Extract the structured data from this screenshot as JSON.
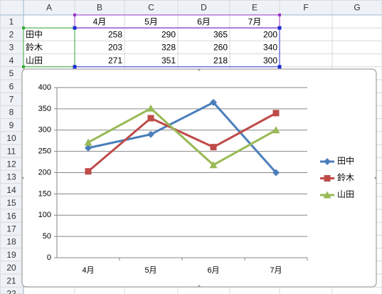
{
  "sheet": {
    "column_headers": [
      "A",
      "B",
      "C",
      "D",
      "E",
      "F",
      "G"
    ],
    "row_headers": [
      1,
      2,
      3,
      4,
      5,
      6,
      7,
      8,
      9,
      10,
      11,
      12,
      13,
      14,
      15,
      16,
      17,
      18,
      19,
      20,
      21,
      22
    ],
    "header": [
      "4月",
      "5月",
      "6月",
      "7月"
    ],
    "rows": [
      {
        "name": "田中",
        "values": [
          258,
          290,
          365,
          200
        ]
      },
      {
        "name": "鈴木",
        "values": [
          203,
          328,
          260,
          340
        ]
      },
      {
        "name": "山田",
        "values": [
          271,
          351,
          218,
          300
        ]
      }
    ]
  },
  "chart_data": {
    "type": "line",
    "categories": [
      "4月",
      "5月",
      "6月",
      "7月"
    ],
    "series": [
      {
        "name": "田中",
        "color": "#4a7ebb",
        "marker": "diamond",
        "values": [
          258,
          290,
          365,
          200
        ]
      },
      {
        "name": "鈴木",
        "color": "#be4b48",
        "marker": "square",
        "values": [
          203,
          328,
          260,
          340
        ]
      },
      {
        "name": "山田",
        "color": "#98b954",
        "marker": "triangle",
        "values": [
          271,
          351,
          218,
          300
        ]
      }
    ],
    "ylim": [
      0,
      400
    ],
    "yticks": [
      0,
      50,
      100,
      150,
      200,
      250,
      300,
      350,
      400
    ],
    "grid": true,
    "legend": "right"
  }
}
